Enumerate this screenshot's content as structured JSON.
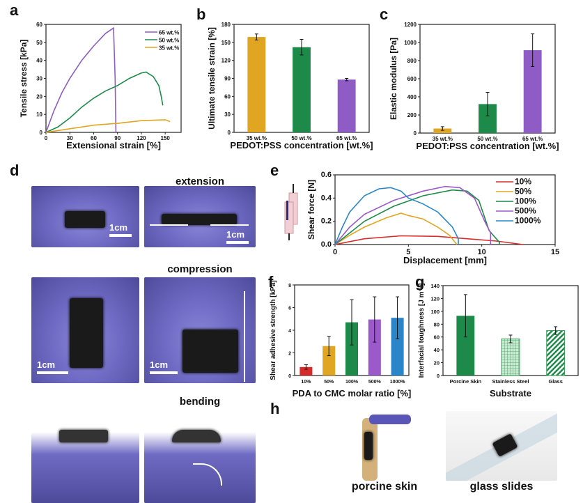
{
  "panel_letters": [
    "a",
    "b",
    "c",
    "d",
    "e",
    "f",
    "g",
    "h"
  ],
  "photo_captions": {
    "extension": "extension",
    "compression": "compression",
    "bending": "bending",
    "porcine": "porcine skin",
    "glass": "glass slides",
    "scale": "1cm"
  },
  "chart_data": [
    {
      "id": "a",
      "type": "line",
      "xlabel": "Extensional strain [%]",
      "ylabel": "Tensile stress [kPa]",
      "xlim": [
        0,
        170
      ],
      "ylim": [
        0,
        60
      ],
      "xticks": [
        0,
        30,
        60,
        90,
        120,
        150
      ],
      "yticks": [
        0,
        10,
        20,
        30,
        40,
        50,
        60
      ],
      "legend": "top-right",
      "series": [
        {
          "name": "65 wt.%",
          "color": "#8e5cc4",
          "points": [
            [
              0,
              0
            ],
            [
              10,
              12
            ],
            [
              20,
              22
            ],
            [
              30,
              30
            ],
            [
              45,
              40
            ],
            [
              60,
              48
            ],
            [
              75,
              55
            ],
            [
              85,
              58
            ],
            [
              87,
              30
            ],
            [
              88,
              0
            ]
          ]
        },
        {
          "name": "50 wt.%",
          "color": "#1e8a4a",
          "points": [
            [
              0,
              0
            ],
            [
              15,
              3
            ],
            [
              30,
              8
            ],
            [
              45,
              14
            ],
            [
              60,
              19
            ],
            [
              75,
              23
            ],
            [
              90,
              26
            ],
            [
              105,
              30
            ],
            [
              120,
              33
            ],
            [
              126,
              33.5
            ],
            [
              135,
              31
            ],
            [
              142,
              26
            ],
            [
              145,
              20
            ],
            [
              147,
              15
            ]
          ]
        },
        {
          "name": "35 wt.%",
          "color": "#e0a521",
          "points": [
            [
              0,
              0
            ],
            [
              30,
              2
            ],
            [
              60,
              4
            ],
            [
              90,
              5
            ],
            [
              120,
              6.5
            ],
            [
              150,
              7
            ],
            [
              156,
              6
            ]
          ]
        }
      ]
    },
    {
      "id": "b",
      "type": "bar",
      "xlabel": "PEDOT:PSS concentration [wt.%]",
      "ylabel": "Ultimate tensile strain [%]",
      "ylim": [
        0,
        180
      ],
      "yticks": [
        0,
        30,
        60,
        90,
        120,
        150,
        180
      ],
      "categories": [
        "35 wt.%",
        "50 wt.%",
        "65 wt.%"
      ],
      "values": [
        159,
        142,
        88
      ],
      "errors": [
        5,
        13,
        2
      ],
      "colors": [
        "#e0a521",
        "#1e8a4a",
        "#8e5cc4"
      ]
    },
    {
      "id": "c",
      "type": "bar",
      "xlabel": "PEDOT:PSS concentration [wt.%]",
      "ylabel": "Elastic modulus [Pa]",
      "ylim": [
        0,
        1200
      ],
      "yticks": [
        0,
        200,
        400,
        600,
        800,
        1000,
        1200
      ],
      "categories": [
        "35 wt.%",
        "50 wt.%",
        "65 wt.%"
      ],
      "values": [
        50,
        320,
        915
      ],
      "errors": [
        20,
        130,
        180
      ],
      "colors": [
        "#e0a521",
        "#1e8a4a",
        "#8e5cc4"
      ]
    },
    {
      "id": "e",
      "type": "line",
      "xlabel": "Displacement [mm]",
      "ylabel": "Shear force [N]",
      "xlim": [
        0,
        15
      ],
      "ylim": [
        0,
        0.6
      ],
      "xticks": [
        0,
        5,
        10,
        15
      ],
      "yticks": [
        0.0,
        0.2,
        0.4,
        0.6
      ],
      "legend": "top-right",
      "series": [
        {
          "name": "10%",
          "color": "#d62b2b",
          "points": [
            [
              0,
              0
            ],
            [
              2,
              0.05
            ],
            [
              4.5,
              0.075
            ],
            [
              7,
              0.07
            ],
            [
              9,
              0.05
            ],
            [
              11,
              0.03
            ],
            [
              12.8,
              0
            ]
          ]
        },
        {
          "name": "50%",
          "color": "#e0a521",
          "points": [
            [
              0,
              0
            ],
            [
              1,
              0.08
            ],
            [
              2,
              0.15
            ],
            [
              3.5,
              0.23
            ],
            [
              4.5,
              0.27
            ],
            [
              5,
              0.25
            ],
            [
              6,
              0.22
            ],
            [
              7,
              0.15
            ],
            [
              7.8,
              0.08
            ],
            [
              8.3,
              0
            ]
          ]
        },
        {
          "name": "100%",
          "color": "#1e8a4a",
          "points": [
            [
              0,
              0
            ],
            [
              1,
              0.1
            ],
            [
              2,
              0.2
            ],
            [
              4,
              0.33
            ],
            [
              6,
              0.42
            ],
            [
              8,
              0.47
            ],
            [
              9,
              0.46
            ],
            [
              9.8,
              0.38
            ],
            [
              10.5,
              0.12
            ],
            [
              11.2,
              0.02
            ],
            [
              11.2,
              0
            ]
          ]
        },
        {
          "name": "500%",
          "color": "#9b59c9",
          "points": [
            [
              0,
              0
            ],
            [
              1,
              0.15
            ],
            [
              2,
              0.26
            ],
            [
              4,
              0.38
            ],
            [
              6,
              0.46
            ],
            [
              7.5,
              0.5
            ],
            [
              8.5,
              0.49
            ],
            [
              9.5,
              0.4
            ],
            [
              10.2,
              0.2
            ],
            [
              10.6,
              0.1
            ],
            [
              10.6,
              0
            ]
          ]
        },
        {
          "name": "1000%",
          "color": "#2a86c8",
          "points": [
            [
              0,
              0
            ],
            [
              0.5,
              0.15
            ],
            [
              1,
              0.28
            ],
            [
              2,
              0.42
            ],
            [
              3,
              0.48
            ],
            [
              3.8,
              0.49
            ],
            [
              4.5,
              0.46
            ],
            [
              5,
              0.4
            ],
            [
              6,
              0.35
            ],
            [
              7,
              0.28
            ],
            [
              8,
              0.15
            ],
            [
              8.4,
              0.05
            ],
            [
              8.4,
              0
            ]
          ]
        }
      ]
    },
    {
      "id": "f",
      "type": "bar",
      "xlabel": "PDA to CMC molar ratio [%]",
      "ylabel": "Shear adhesive strength [kPa]",
      "ylim": [
        0,
        8
      ],
      "yticks": [
        0,
        2,
        4,
        6,
        8
      ],
      "categories": [
        "10%",
        "50%",
        "100%",
        "500%",
        "1000%"
      ],
      "values": [
        0.75,
        2.6,
        4.7,
        4.95,
        5.1
      ],
      "errors": [
        0.2,
        0.85,
        2.0,
        2.0,
        1.85
      ],
      "colors": [
        "#d62b2b",
        "#e0a521",
        "#1e8a4a",
        "#9b59c9",
        "#2a86c8"
      ]
    },
    {
      "id": "g",
      "type": "bar",
      "xlabel": "Substrate",
      "ylabel": "Interfacial toughness [J m⁻²]",
      "ylim": [
        0,
        140
      ],
      "yticks": [
        0,
        20,
        40,
        60,
        80,
        100,
        120,
        140
      ],
      "categories": [
        "Porcine Skin",
        "Stainless Steel",
        "Glass"
      ],
      "values": [
        93,
        57,
        70
      ],
      "errors": [
        33,
        6,
        6
      ],
      "colors": [
        "#1e8a4a",
        "#9ccfa8",
        "#1e8a4a"
      ],
      "patterns": [
        "solid",
        "grid",
        "diagonal"
      ]
    }
  ]
}
